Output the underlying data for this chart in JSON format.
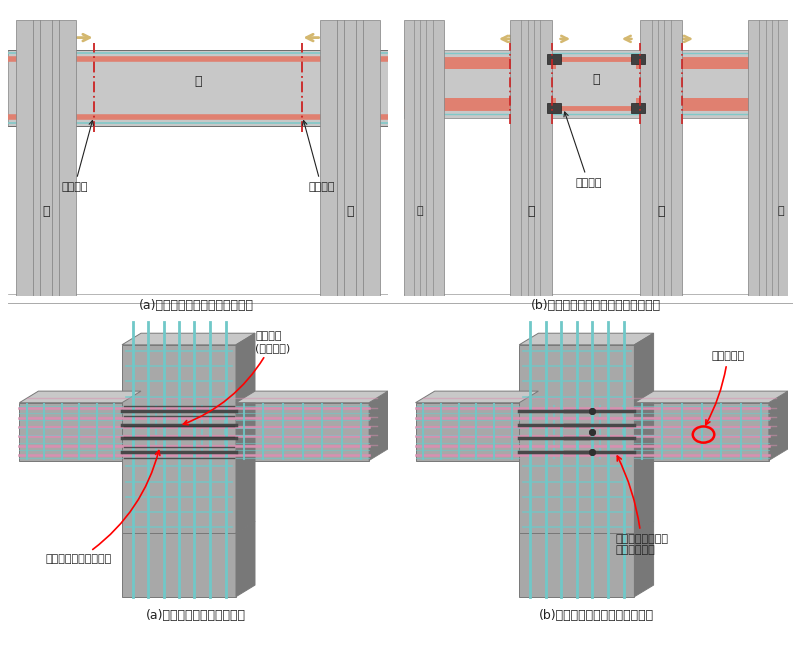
{
  "bg_color": "#ffffff",
  "panel_a_top_caption": "(a)スリーブタイプの適用架構例",
  "panel_b_top_caption": "(b)　カットオフタイプの適用架構例",
  "panel_a_bot_caption": "(a)スリーブタイプ配筋状況",
  "panel_b_bot_caption": "(b)　カットオフタイプ配筋状況",
  "light_gray": "#d0d0d0",
  "mid_gray": "#b0b0b0",
  "dark_gray": "#808080",
  "col_gray": "#c0c0c0",
  "col_dark": "#909090",
  "beam_gray": "#c8c8c8",
  "rebar_salmon": "#e08070",
  "rebar_cyan": "#80c8c8",
  "arrow_tan": "#d4b870",
  "red_line": "#cc2222",
  "annot_color": "#222222",
  "concrete_3d": "#a8a8a8",
  "concrete_3d_dark": "#787878",
  "concrete_3d_light": "#c8c8c8",
  "cyan_rebar": "#70c8c8",
  "pink_rebar": "#d890b0",
  "dark_rebar": "#484848"
}
